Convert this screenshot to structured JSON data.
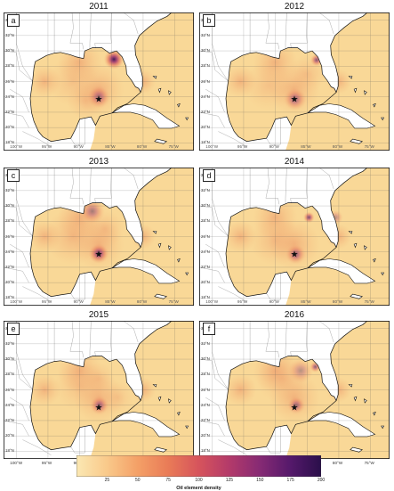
{
  "panels": [
    {
      "letter": "a",
      "year": "2011"
    },
    {
      "letter": "b",
      "year": "2012"
    },
    {
      "letter": "c",
      "year": "2013"
    },
    {
      "letter": "d",
      "year": "2014"
    },
    {
      "letter": "e",
      "year": "2015"
    },
    {
      "letter": "f",
      "year": "2016"
    }
  ],
  "lat_labels": [
    "34°N",
    "32°N",
    "30°N",
    "28°N",
    "26°N",
    "24°N",
    "22°N",
    "20°N",
    "18°N"
  ],
  "lon_labels": [
    "100°W",
    "95°W",
    "90°W",
    "85°W",
    "80°W",
    "75°W"
  ],
  "colorbar": {
    "label": "Oil element density",
    "ticks": [
      "25",
      "50",
      "75",
      "100",
      "125",
      "150",
      "175",
      "200"
    ],
    "min": 0,
    "max": 200,
    "colors": [
      "#fbe8b3",
      "#f9c98a",
      "#f4a067",
      "#e97b57",
      "#d6545c",
      "#b33a6a",
      "#862a74",
      "#55196b",
      "#2a0f4a"
    ]
  },
  "colors": {
    "land": "#ffffff",
    "ocean_base": "#f9d897",
    "coast": "#111111"
  }
}
